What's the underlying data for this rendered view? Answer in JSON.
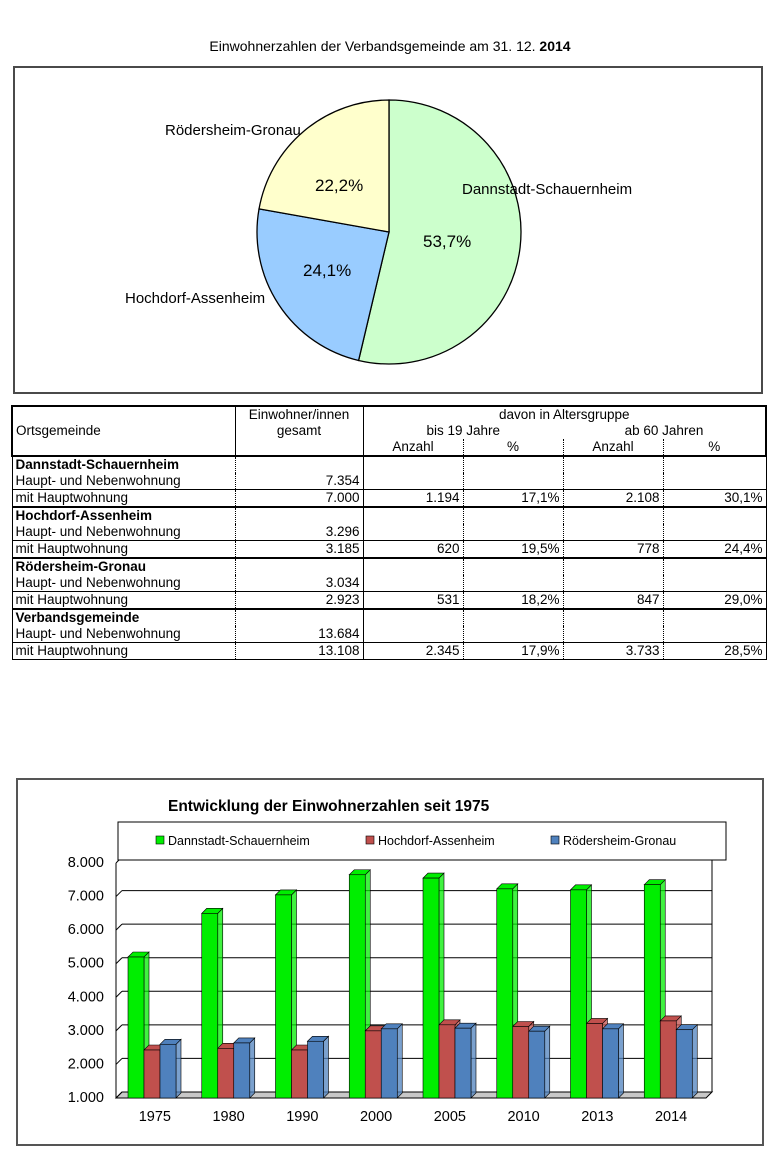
{
  "pie": {
    "title": "Einwohnerzahlen der Verbandsgemeinde am 31. 12.",
    "title_year": "2014",
    "slices": [
      {
        "name": "Dannstadt-Schauernheim",
        "pct_label": "53,7%",
        "value": 53.7,
        "color": "#ccffcc"
      },
      {
        "name": "Hochdorf-Assenheim",
        "pct_label": "24,1%",
        "value": 24.1,
        "color": "#99ccff"
      },
      {
        "name": "Rödersheim-Gronau",
        "pct_label": "22,2%",
        "value": 22.2,
        "color": "#ffffcc"
      }
    ]
  },
  "table": {
    "h_ort": "Ortsgemeinde",
    "h_einw1": "Einwohner/innen",
    "h_einw2": "gesamt",
    "h_davon": "davon in Altersgruppe",
    "h_bis19": "bis 19 Jahre",
    "h_ab60": "ab 60 Jahren",
    "h_anzahl1": "Anzahl",
    "h_pct1": "%",
    "h_anzahl2": "Anzahl",
    "h_pct2": "%",
    "groups": [
      {
        "name": "Dannstadt-Schauernheim",
        "row1_label": "Haupt- und Nebenwohnung",
        "row1_total": "7.354",
        "row2_label": "mit Hauptwohnung",
        "row2_total": "7.000",
        "bis19_n": "1.194",
        "bis19_p": "17,1%",
        "ab60_n": "2.108",
        "ab60_p": "30,1%"
      },
      {
        "name": "Hochdorf-Assenheim",
        "row1_label": "Haupt- und Nebenwohnung",
        "row1_total": "3.296",
        "row2_label": "mit Hauptwohnung",
        "row2_total": "3.185",
        "bis19_n": "620",
        "bis19_p": "19,5%",
        "ab60_n": "778",
        "ab60_p": "24,4%"
      },
      {
        "name": "Rödersheim-Gronau",
        "row1_label": "Haupt- und Nebenwohnung",
        "row1_total": "3.034",
        "row2_label": "mit Hauptwohnung",
        "row2_total": "2.923",
        "bis19_n": "531",
        "bis19_p": "18,2%",
        "ab60_n": "847",
        "ab60_p": "29,0%"
      },
      {
        "name": "Verbandsgemeinde",
        "row1_label": "Haupt- und Nebenwohnung",
        "row1_total": "13.684",
        "row2_label": "mit Hauptwohnung",
        "row2_total": "13.108",
        "bis19_n": "2.345",
        "bis19_p": "17,9%",
        "ab60_n": "3.733",
        "ab60_p": "28,5%"
      }
    ]
  },
  "chart_data": [
    {
      "type": "pie",
      "title": "Einwohnerzahlen der Verbandsgemeinde am 31. 12. 2014",
      "categories": [
        "Dannstadt-Schauernheim",
        "Hochdorf-Assenheim",
        "Rödersheim-Gronau"
      ],
      "values": [
        53.7,
        24.1,
        22.2
      ],
      "colors": [
        "#ccffcc",
        "#99ccff",
        "#ffffcc"
      ]
    },
    {
      "type": "bar",
      "title": "Entwicklung der Einwohnerzahlen seit 1975",
      "categories": [
        "1975",
        "1980",
        "1990",
        "2000",
        "2005",
        "2010",
        "2013",
        "2014"
      ],
      "series": [
        {
          "name": "Dannstadt-Schauernheim",
          "color": "#00ee00",
          "values": [
            5200,
            6500,
            7050,
            7650,
            7550,
            7230,
            7200,
            7354
          ]
        },
        {
          "name": "Hochdorf-Assenheim",
          "color": "#c0504d",
          "values": [
            2430,
            2480,
            2430,
            3000,
            3180,
            3130,
            3220,
            3296
          ]
        },
        {
          "name": "Rödersheim-Gronau",
          "color": "#4f81bd",
          "values": [
            2600,
            2640,
            2690,
            3060,
            3080,
            2990,
            3060,
            3034
          ]
        }
      ],
      "ylim": [
        1000,
        8000
      ],
      "yticks": [
        "1.000",
        "2.000",
        "3.000",
        "4.000",
        "5.000",
        "6.000",
        "7.000",
        "8.000"
      ],
      "grid": true,
      "legend_position": "top"
    }
  ]
}
